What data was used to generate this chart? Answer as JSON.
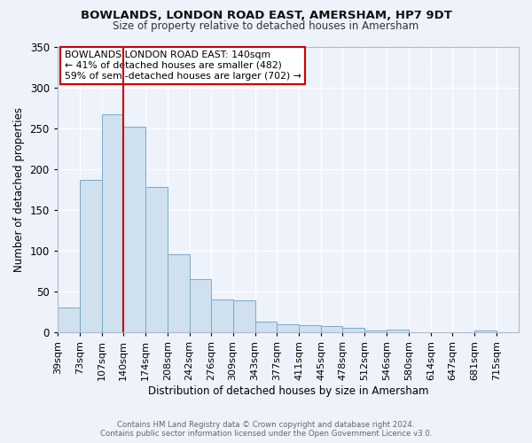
{
  "title": "BOWLANDS, LONDON ROAD EAST, AMERSHAM, HP7 9DT",
  "subtitle": "Size of property relative to detached houses in Amersham",
  "xlabel": "Distribution of detached houses by size in Amersham",
  "ylabel": "Number of detached properties",
  "bar_color": "#cfe0ef",
  "bar_edge_color": "#7aaac8",
  "background_color": "#eef2fa",
  "grid_color": "#ffffff",
  "bin_labels": [
    "39sqm",
    "73sqm",
    "107sqm",
    "140sqm",
    "174sqm",
    "208sqm",
    "242sqm",
    "276sqm",
    "309sqm",
    "343sqm",
    "377sqm",
    "411sqm",
    "445sqm",
    "478sqm",
    "512sqm",
    "546sqm",
    "580sqm",
    "614sqm",
    "647sqm",
    "681sqm",
    "715sqm"
  ],
  "bar_heights": [
    30,
    187,
    267,
    252,
    178,
    95,
    65,
    40,
    39,
    13,
    10,
    8,
    7,
    5,
    2,
    3,
    0,
    0,
    0,
    2,
    0
  ],
  "property_label": "BOWLANDS LONDON ROAD EAST: 140sqm",
  "annotation_line1": "← 41% of detached houses are smaller (482)",
  "annotation_line2": "59% of semi-detached houses are larger (702) →",
  "vline_color": "#cc0000",
  "ylim": [
    0,
    350
  ],
  "yticks": [
    0,
    50,
    100,
    150,
    200,
    250,
    300,
    350
  ],
  "footer_line1": "Contains HM Land Registry data © Crown copyright and database right 2024.",
  "footer_line2": "Contains public sector information licensed under the Open Government Licence v3.0.",
  "bin_edges": [
    39,
    73,
    107,
    140,
    174,
    208,
    242,
    276,
    309,
    343,
    377,
    411,
    445,
    478,
    512,
    546,
    580,
    614,
    647,
    681,
    715,
    749
  ],
  "vline_x": 140
}
